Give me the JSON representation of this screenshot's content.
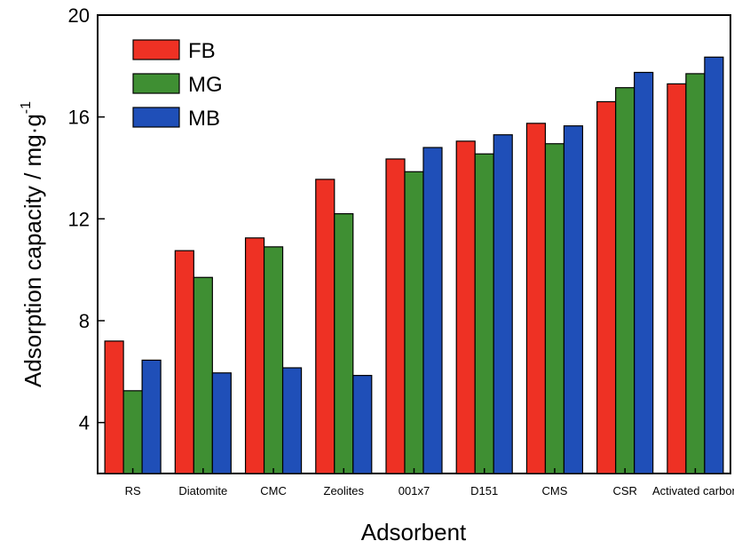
{
  "chart_data": {
    "type": "bar",
    "xlabel": "Adsorbent",
    "ylabel": {
      "main": "Adsorption capacity / mg·g",
      "superscript": "-1"
    },
    "ylim": [
      2,
      20
    ],
    "yticks": [
      4,
      8,
      12,
      16,
      20
    ],
    "grid": false,
    "legend_position": "top-left",
    "categories": [
      "RS",
      "Diatomite",
      "CMC",
      "Zeolites",
      "001x7",
      "D151",
      "CMS",
      "CSR",
      "Activated carbon"
    ],
    "series": [
      {
        "name": "FB",
        "color": "#ee3124",
        "values": [
          7.2,
          10.75,
          11.25,
          13.55,
          14.35,
          15.05,
          15.75,
          16.6,
          17.3
        ]
      },
      {
        "name": "MG",
        "color": "#3f8f33",
        "values": [
          5.25,
          9.7,
          10.9,
          12.2,
          13.85,
          14.55,
          14.95,
          17.15,
          17.7
        ]
      },
      {
        "name": "MB",
        "color": "#1f4fb8",
        "values": [
          6.45,
          5.95,
          6.15,
          5.85,
          14.8,
          15.3,
          15.65,
          17.75,
          18.35
        ]
      }
    ]
  }
}
